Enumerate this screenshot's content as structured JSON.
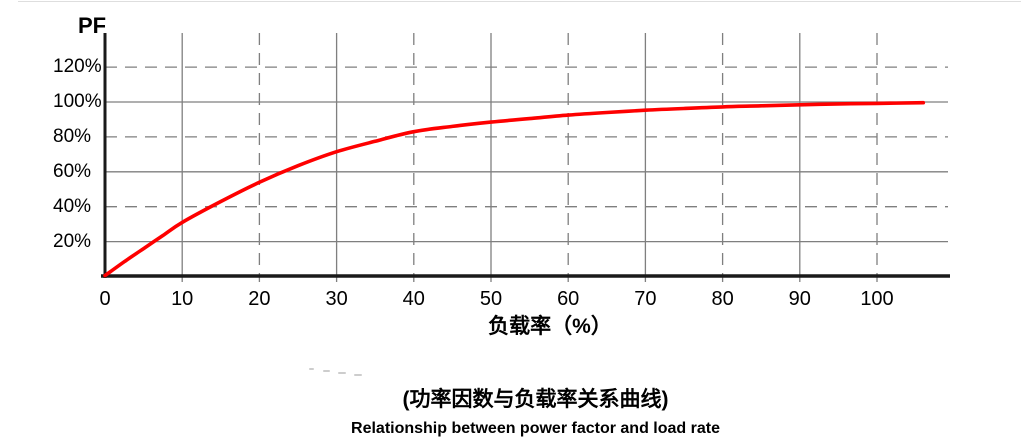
{
  "y_axis_name": "PF",
  "chart_data": {
    "type": "line",
    "title": "(功率因数与负载率关系曲线)",
    "subtitle": "Relationship between power factor and load rate",
    "xlabel": "负载率（%）",
    "ylabel": "PF",
    "x_ticks": [
      0,
      10,
      20,
      30,
      40,
      50,
      60,
      70,
      80,
      90,
      100
    ],
    "y_ticks_percent": [
      20,
      40,
      60,
      80,
      100,
      120
    ],
    "y_tick_suffix": "%",
    "xlim": [
      0,
      109
    ],
    "ylim_percent": [
      0,
      140
    ],
    "grid": {
      "pattern": "alternating dashed/solid",
      "legend_position": "none"
    },
    "series": [
      {
        "name": "power-factor-vs-load-rate",
        "x": [
          0,
          2.5,
          5,
          7.5,
          10,
          15,
          20,
          25,
          30,
          35,
          40,
          45,
          50,
          55,
          60,
          65,
          70,
          75,
          80,
          85,
          90,
          95,
          100,
          106
        ],
        "y_percent": [
          0.5,
          8.5,
          16,
          23.5,
          31,
          43,
          54,
          63.5,
          71.5,
          77.5,
          83,
          86,
          88.5,
          90.5,
          92.5,
          94,
          95.3,
          96.3,
          97.2,
          97.8,
          98.4,
          98.9,
          99.2,
          99.6
        ]
      }
    ],
    "colors": {
      "curve": "#fe0000",
      "grid": "#7f7f7f",
      "axis": "#1a1a1a",
      "text": "#000000"
    }
  }
}
